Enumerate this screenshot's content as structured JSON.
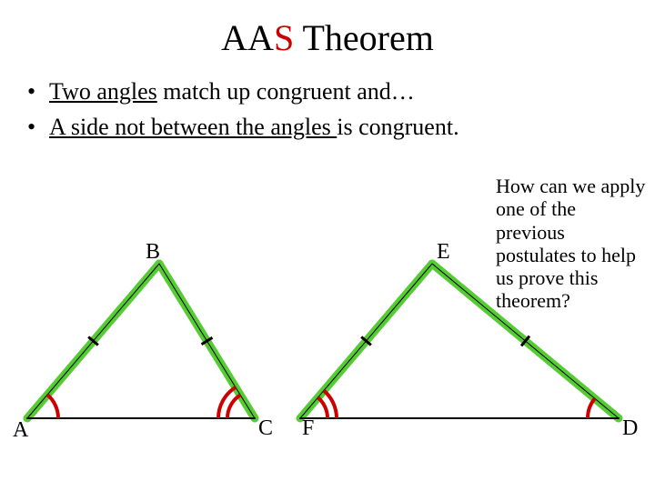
{
  "title": {
    "aa": "AA",
    "s": "S",
    "rest": " Theorem"
  },
  "bullets": [
    {
      "underlined": "Two angles",
      "rest": " match up congruent and…"
    },
    {
      "underlined": "A side not between the angles ",
      "rest": " is congruent."
    }
  ],
  "sidebox": "How can we apply one of the previous postulates to help us prove this theorem?",
  "colors": {
    "highlight": "#55cc33",
    "arc": "#cc0000",
    "line": "#000000",
    "title_accent": "#cc0000"
  },
  "stroke": {
    "highlight_width": 9,
    "arc_width": 4,
    "base_width": 2,
    "tick_width": 3
  },
  "triangle1": {
    "A": [
      30,
      200
    ],
    "B": [
      175,
      30
    ],
    "C": [
      280,
      200
    ],
    "labels": {
      "A": "A",
      "B": "B",
      "C": "C"
    },
    "label_pos": {
      "A": [
        14,
        200
      ],
      "B": [
        160,
        4
      ],
      "C": [
        284,
        198
      ]
    },
    "given_angle_arcs_at": "A",
    "derived_angle_arcs_at": "C",
    "highlight_sides": [
      "AB",
      "BC"
    ]
  },
  "triangle2": {
    "F": [
      330,
      200
    ],
    "E": [
      475,
      30
    ],
    "D": [
      680,
      200
    ],
    "labels": {
      "F": "F",
      "E": "E",
      "D": "D"
    },
    "label_pos": {
      "F": [
        332,
        198
      ],
      "E": [
        480,
        4
      ],
      "D": [
        684,
        198
      ]
    },
    "given_angle_arcs_at": "D",
    "derived_angle_arcs_at": "F",
    "highlight_sides": [
      "FE",
      "ED"
    ]
  }
}
